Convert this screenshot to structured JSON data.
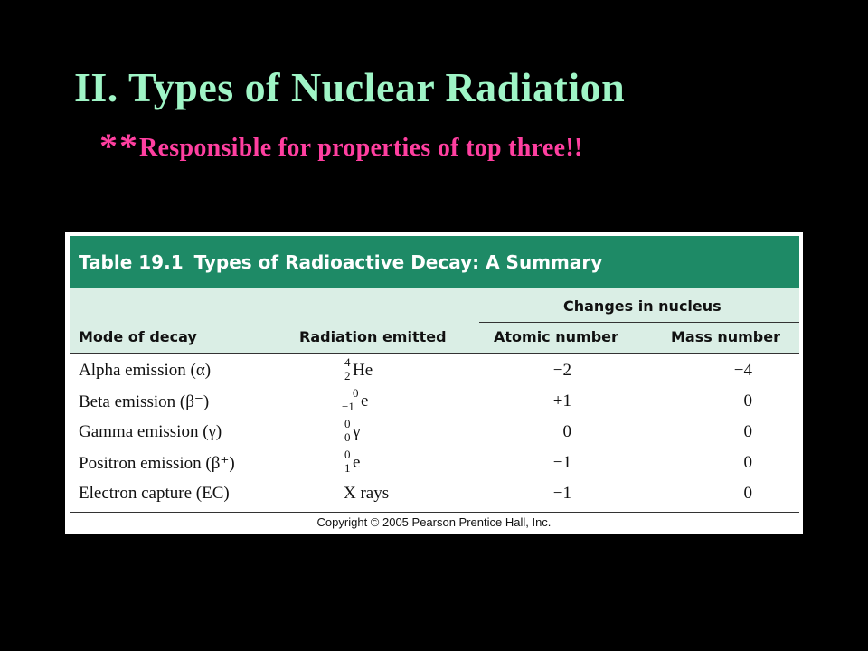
{
  "slide": {
    "title": "II. Types of Nuclear Radiation",
    "subtitle_stars": "**",
    "subtitle_text": "Responsible for properties of top three!!"
  },
  "table": {
    "caption_number": "Table 19.1",
    "caption_title": "Types of Radioactive Decay: A Summary",
    "group_header": "Changes in nucleus",
    "columns": [
      "Mode of decay",
      "Radiation emitted",
      "Atomic number",
      "Mass number"
    ],
    "rows": [
      {
        "mode": "Alpha emission (α)",
        "radiation": {
          "sup": "4",
          "sub": "2",
          "sym": "He"
        },
        "atomic": "−2",
        "mass": "−4"
      },
      {
        "mode": "Beta emission (β⁻)",
        "radiation": {
          "sup": "0",
          "sub": "−1",
          "sym": "e"
        },
        "atomic": "+1",
        "mass": "0"
      },
      {
        "mode": "Gamma emission (γ)",
        "radiation": {
          "sup": "0",
          "sub": "0",
          "sym": "γ"
        },
        "atomic": "0",
        "mass": "0"
      },
      {
        "mode": "Positron emission (β⁺)",
        "radiation": {
          "sup": "0",
          "sub": "1",
          "sym": "e"
        },
        "atomic": "−1",
        "mass": "0"
      },
      {
        "mode": "Electron capture (EC)",
        "radiation": {
          "text": "X rays"
        },
        "atomic": "−1",
        "mass": "0"
      }
    ],
    "copyright": "Copyright © 2005 Pearson Prentice Hall, Inc."
  }
}
